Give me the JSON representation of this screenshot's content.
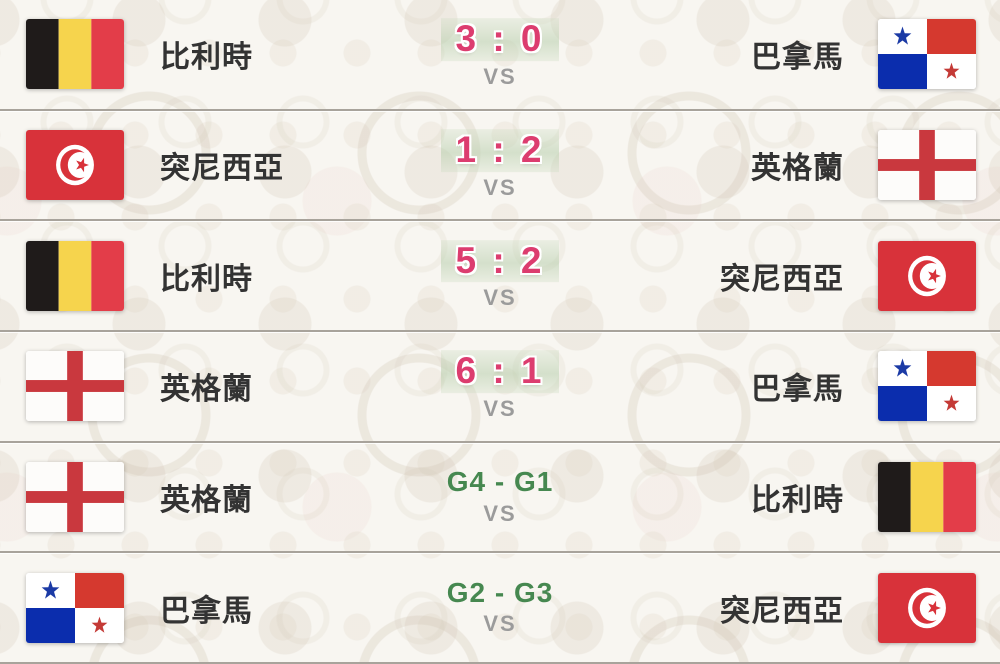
{
  "labels": {
    "vs": "VS"
  },
  "colors": {
    "score_result": "#dc3d6f",
    "score_fixture": "#468850",
    "score_band": "#cfe0c6",
    "vs": "#9b9b9b",
    "team_name": "#333333",
    "divider": "#a8a39b",
    "background": "#f8f6f1"
  },
  "matches": [
    {
      "home": {
        "name": "比利時",
        "flag": "belgium"
      },
      "away": {
        "name": "巴拿馬",
        "flag": "panama"
      },
      "score": "3 : 0",
      "score_type": "result"
    },
    {
      "home": {
        "name": "突尼西亞",
        "flag": "tunisia"
      },
      "away": {
        "name": "英格蘭",
        "flag": "england"
      },
      "score": "1 : 2",
      "score_type": "result"
    },
    {
      "home": {
        "name": "比利時",
        "flag": "belgium"
      },
      "away": {
        "name": "突尼西亞",
        "flag": "tunisia"
      },
      "score": "5 : 2",
      "score_type": "result"
    },
    {
      "home": {
        "name": "英格蘭",
        "flag": "england"
      },
      "away": {
        "name": "巴拿馬",
        "flag": "panama"
      },
      "score": "6 : 1",
      "score_type": "result"
    },
    {
      "home": {
        "name": "英格蘭",
        "flag": "england"
      },
      "away": {
        "name": "比利時",
        "flag": "belgium"
      },
      "score": "G4 - G1",
      "score_type": "fixture"
    },
    {
      "home": {
        "name": "巴拿馬",
        "flag": "panama"
      },
      "away": {
        "name": "突尼西亞",
        "flag": "tunisia"
      },
      "score": "G2 - G3",
      "score_type": "fixture"
    }
  ]
}
